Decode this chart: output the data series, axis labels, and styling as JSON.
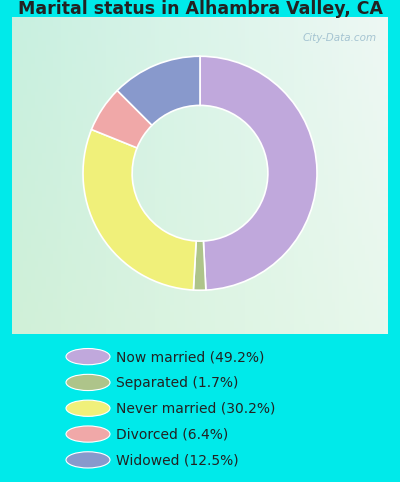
{
  "title": "Marital status in Alhambra Valley, CA",
  "slices": [
    49.2,
    1.7,
    30.2,
    6.4,
    12.5
  ],
  "labels": [
    "Now married (49.2%)",
    "Separated (1.7%)",
    "Never married (30.2%)",
    "Divorced (6.4%)",
    "Widowed (12.5%)"
  ],
  "colors": [
    "#c0a8dc",
    "#aec48a",
    "#f0f07a",
    "#f0a8a8",
    "#8899cc"
  ],
  "bg_cyan": "#00eaea",
  "title_color": "#222222",
  "donut_width": 0.42,
  "watermark": "City-Data.com",
  "chart_bg_corners": [
    "#c8f0e0",
    "#e8f8f0",
    "#d8f0e8",
    "#f0f8f0"
  ],
  "start_angle": 90
}
